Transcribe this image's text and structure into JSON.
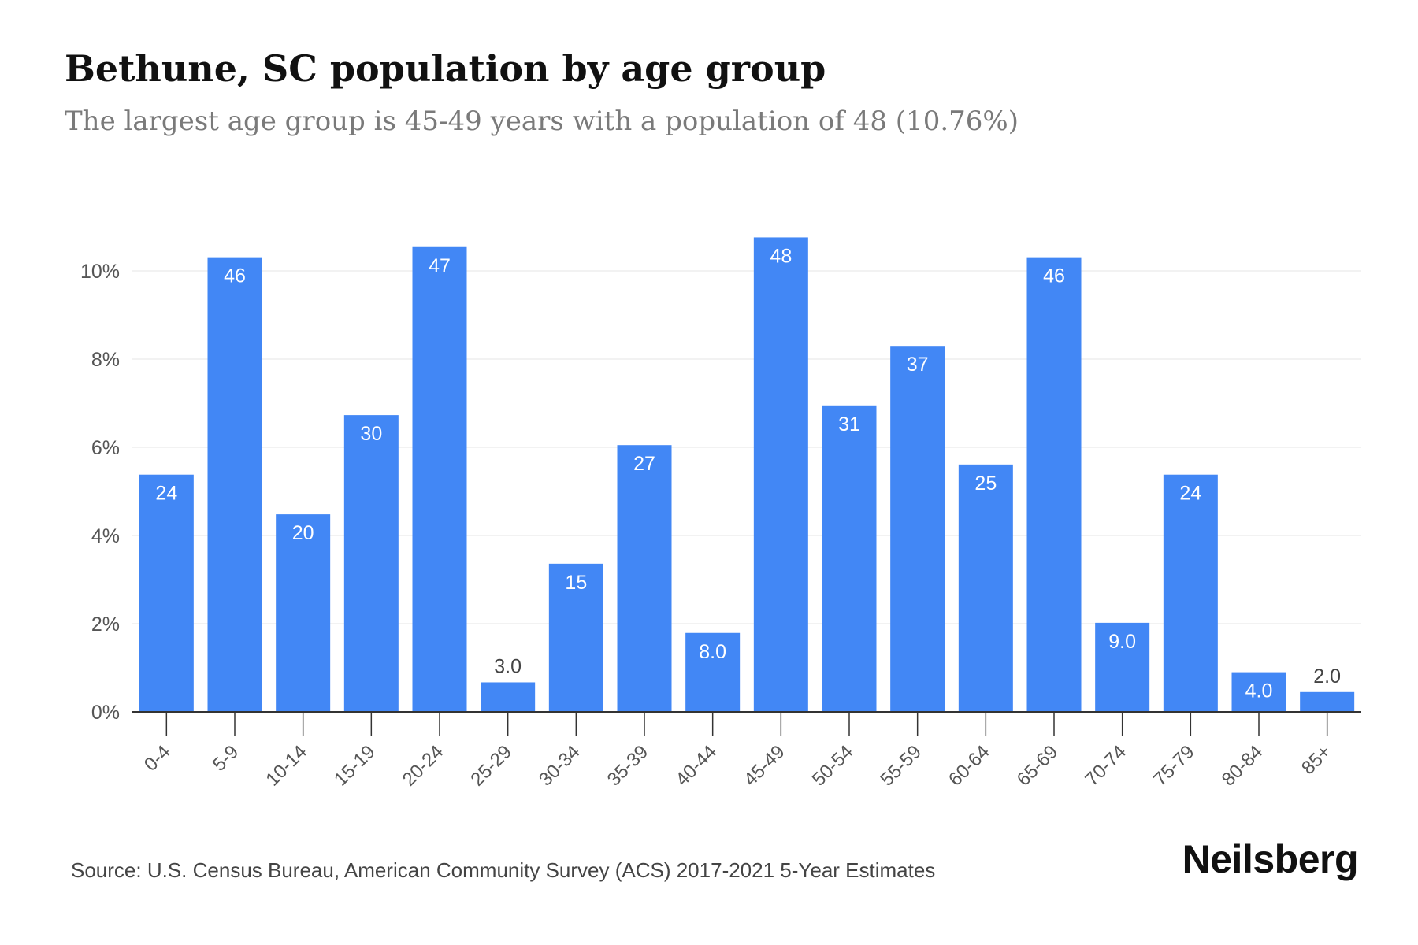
{
  "header": {
    "title": "Bethune, SC population by age group",
    "subtitle": "The largest age group is 45-49 years with a population of 48 (10.76%)"
  },
  "footer": {
    "source": "Source: U.S. Census Bureau, American Community Survey (ACS) 2017-2021 5-Year Estimates",
    "brand": "Neilsberg"
  },
  "colors": {
    "bar": "#4287f5",
    "bar_label": "#ffffff",
    "bar_label_outside": "#444444",
    "grid": "#eeeeee",
    "axis": "#333333",
    "tick_label": "#555555"
  },
  "chart_data": {
    "type": "bar",
    "categories": [
      "0-4",
      "5-9",
      "10-14",
      "15-19",
      "20-24",
      "25-29",
      "30-34",
      "35-39",
      "40-44",
      "45-49",
      "50-54",
      "55-59",
      "60-64",
      "65-69",
      "70-74",
      "75-79",
      "80-84",
      "85+"
    ],
    "values": [
      5.38,
      10.31,
      4.48,
      6.73,
      10.54,
      0.67,
      3.36,
      6.05,
      1.79,
      10.76,
      6.95,
      8.3,
      5.61,
      10.31,
      2.02,
      5.38,
      0.9,
      0.45
    ],
    "data_labels": [
      "24",
      "46",
      "20",
      "30",
      "47",
      "3.0",
      "15",
      "27",
      "8.0",
      "48",
      "31",
      "37",
      "25",
      "46",
      "9.0",
      "24",
      "4.0",
      "2.0"
    ],
    "yticks": [
      0,
      2,
      4,
      6,
      8,
      10
    ],
    "ytick_labels": [
      "0%",
      "2%",
      "4%",
      "6%",
      "8%",
      "10%"
    ],
    "ylim": [
      0,
      12
    ],
    "grid": true,
    "legend": "none"
  }
}
